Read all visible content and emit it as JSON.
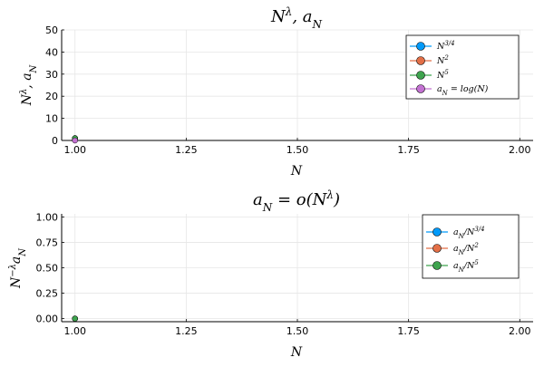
{
  "chart_data": [
    {
      "type": "scatter",
      "title": "N^λ, a_N",
      "xlabel": "N",
      "ylabel": "N^λ, a_N",
      "xlim": [
        0.97,
        2.03
      ],
      "ylim": [
        0,
        50
      ],
      "xticks": [
        1.0,
        1.25,
        1.5,
        1.75,
        2.0
      ],
      "xtick_labels": [
        "1.00",
        "1.25",
        "1.50",
        "1.75",
        "2.00"
      ],
      "yticks": [
        0,
        10,
        20,
        30,
        40,
        50
      ],
      "ytick_labels": [
        "0",
        "10",
        "20",
        "30",
        "40",
        "50"
      ],
      "grid": true,
      "legend_position": "top-right",
      "series": [
        {
          "name": "N^{3/4}",
          "color": "#009AFA",
          "points": [
            [
              1.0,
              1.0
            ]
          ]
        },
        {
          "name": "N^2",
          "color": "#E36F47",
          "points": [
            [
              1.0,
              1.0
            ]
          ]
        },
        {
          "name": "N^5",
          "color": "#3EA44E",
          "points": [
            [
              1.0,
              1.0
            ]
          ]
        },
        {
          "name": "a_N = log(N)",
          "color": "#C371D2",
          "points": [
            [
              1.0,
              0.0
            ]
          ]
        }
      ]
    },
    {
      "type": "scatter",
      "title": "a_N = o(N^λ)",
      "xlabel": "N",
      "ylabel": "N^{−λ} a_N",
      "xlim": [
        0.97,
        2.03
      ],
      "ylim": [
        -0.03,
        1.03
      ],
      "xticks": [
        1.0,
        1.25,
        1.5,
        1.75,
        2.0
      ],
      "xtick_labels": [
        "1.00",
        "1.25",
        "1.50",
        "1.75",
        "2.00"
      ],
      "yticks": [
        0.0,
        0.25,
        0.5,
        0.75,
        1.0
      ],
      "ytick_labels": [
        "0.00",
        "0.25",
        "0.50",
        "0.75",
        "1.00"
      ],
      "grid": true,
      "legend_position": "top-right",
      "series": [
        {
          "name": "a_N/N^{3/4}",
          "color": "#009AFA",
          "points": [
            [
              1.0,
              0.0
            ]
          ]
        },
        {
          "name": "a_N/N^2",
          "color": "#E36F47",
          "points": [
            [
              1.0,
              0.0
            ]
          ]
        },
        {
          "name": "a_N/N^5",
          "color": "#3EA44E",
          "points": [
            [
              1.0,
              0.0
            ]
          ]
        }
      ]
    }
  ]
}
